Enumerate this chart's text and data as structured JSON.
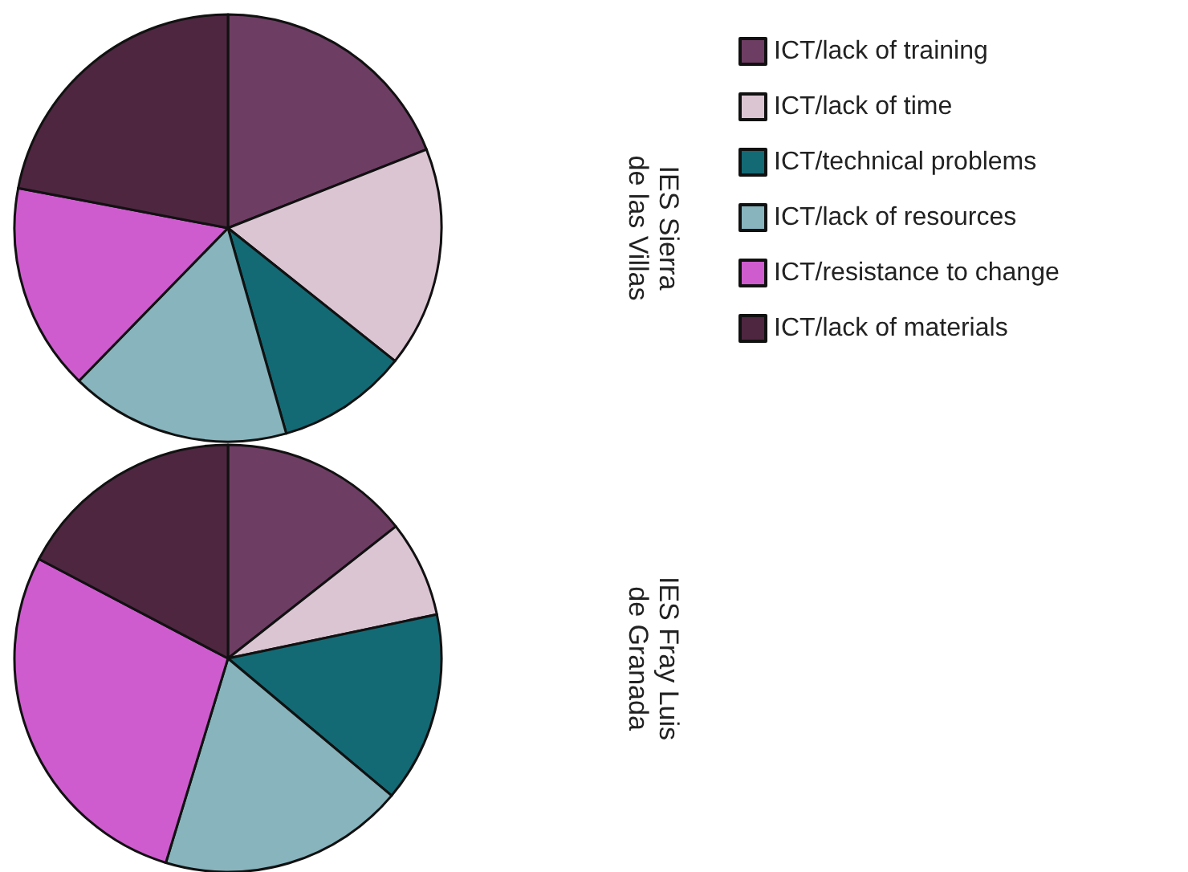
{
  "chart_data": {
    "type": "pie",
    "legend": "right",
    "categories": [
      "ICT/lack of training",
      "ICT/lack of time",
      "ICT/technical problems",
      "ICT/lack of resources",
      "ICT/resistance to change",
      "ICT/lack of materials"
    ],
    "colors": [
      "#6e3d63",
      "#dcc5d3",
      "#136a75",
      "#87b4bd",
      "#cf5ccf",
      "#4e2640"
    ],
    "series": [
      {
        "name": "IES Sierra\nde las Villas",
        "values": [
          19.0,
          16.7,
          9.9,
          16.7,
          15.7,
          22.0
        ]
      },
      {
        "name": "IES Fray Luis\nde Granada",
        "values": [
          14.4,
          7.3,
          14.4,
          18.6,
          28.0,
          17.3
        ]
      }
    ]
  }
}
